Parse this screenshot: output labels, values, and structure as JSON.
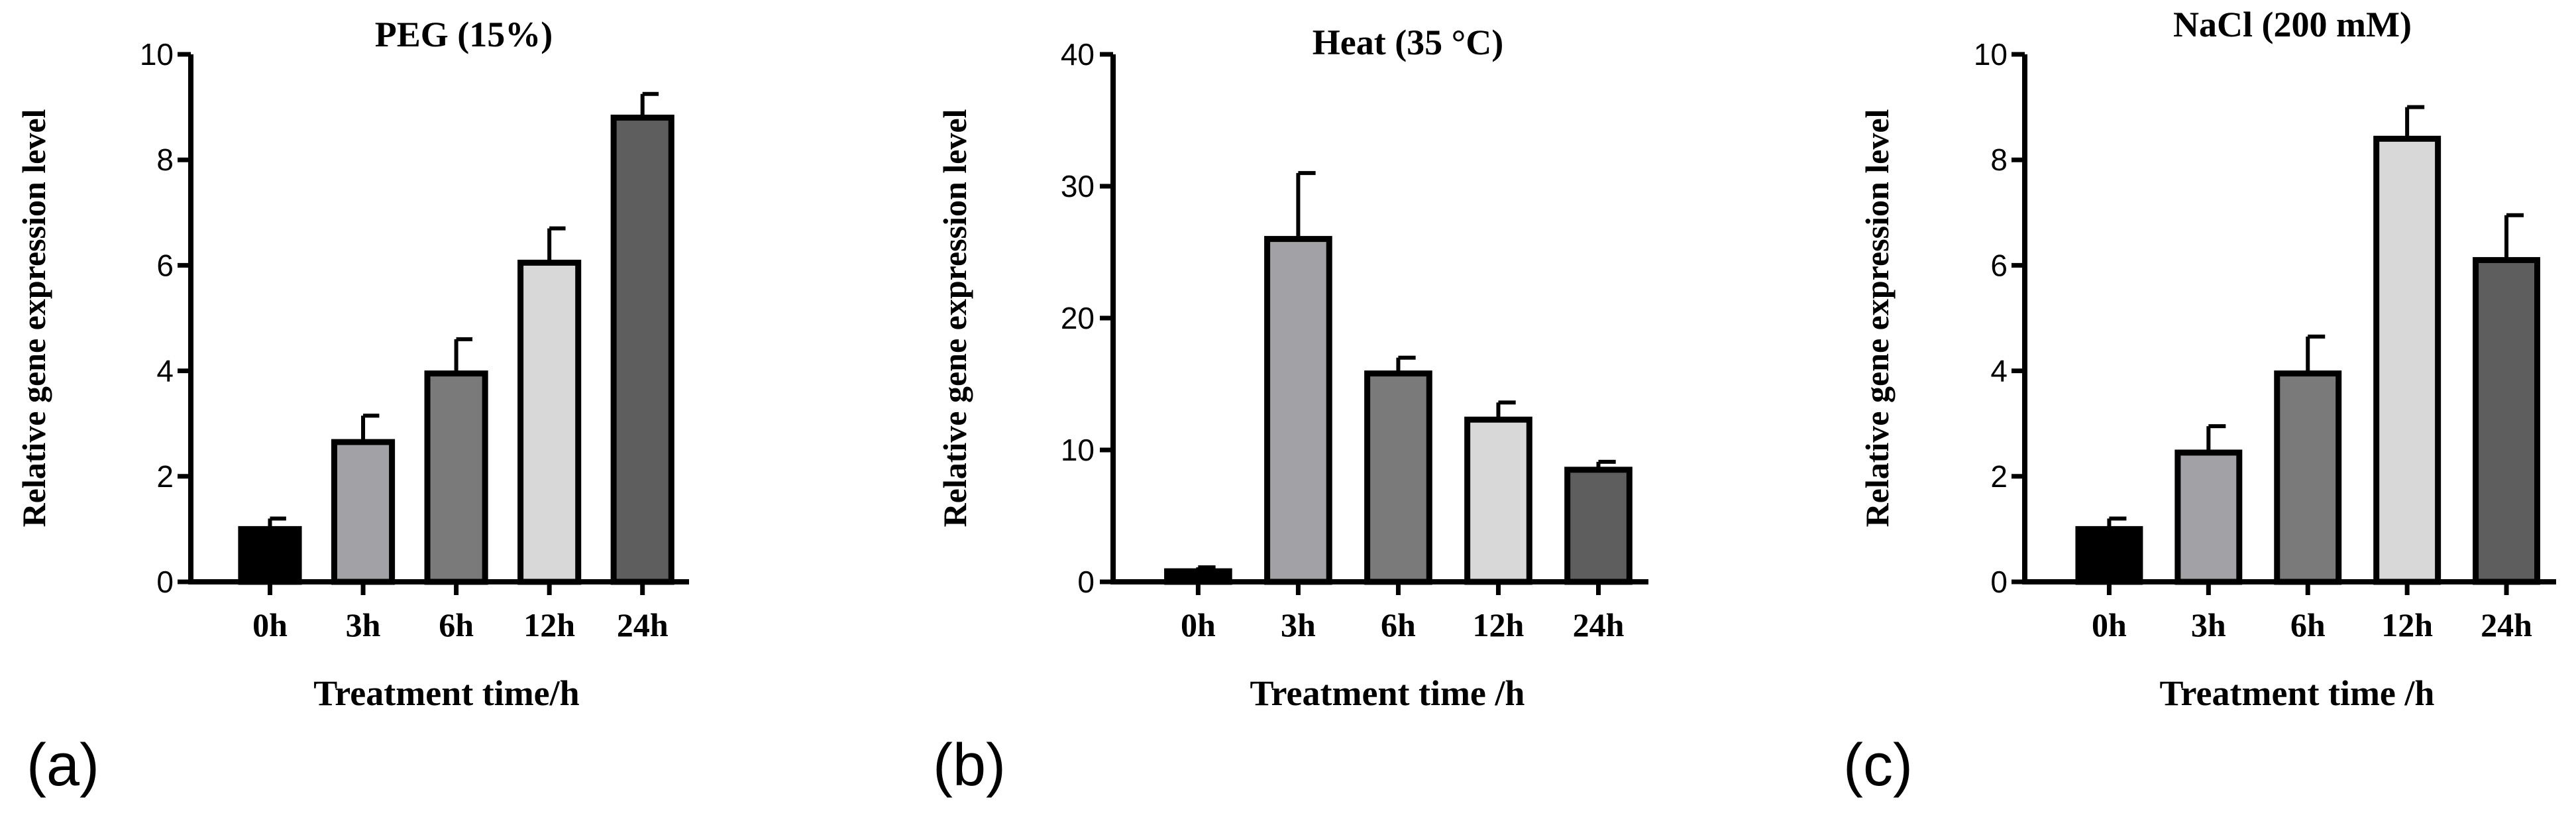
{
  "figure_colors": {
    "axis": "#000000",
    "bar_stroke": "#000000",
    "bar_fills": [
      "#000000",
      "#a2a1a6",
      "#7a7a7a",
      "#d8d8d8",
      "#5e5e5e"
    ]
  },
  "chart_data": [
    {
      "type": "bar",
      "panel_label": "(a)",
      "title": "PEG (15%)",
      "xlabel": "Treatment time/h",
      "ylabel": "Relative gene expression level",
      "categories": [
        "0h",
        "3h",
        "6h",
        "12h",
        "24h"
      ],
      "values": [
        1.0,
        2.65,
        3.95,
        6.05,
        8.8
      ],
      "errors": [
        0.2,
        0.5,
        0.65,
        0.65,
        0.45
      ],
      "ylim": [
        0,
        10
      ],
      "yticks": [
        0,
        2,
        4,
        6,
        8,
        10
      ],
      "grid": false
    },
    {
      "type": "bar",
      "panel_label": "(b)",
      "title": "Heat (35 °C)",
      "xlabel": "Treatment time /h",
      "ylabel": "Relative gene expression level",
      "categories": [
        "0h",
        "3h",
        "6h",
        "12h",
        "24h"
      ],
      "values": [
        0.8,
        26.0,
        15.8,
        12.3,
        8.5
      ],
      "errors": [
        0.3,
        5.0,
        1.2,
        1.3,
        0.6
      ],
      "ylim": [
        0,
        40
      ],
      "yticks": [
        0,
        10,
        20,
        30,
        40
      ],
      "grid": false
    },
    {
      "type": "bar",
      "panel_label": "(c)",
      "title": "NaCl (200 mM)",
      "xlabel": "Treatment time /h",
      "ylabel": "Relative gene expression level",
      "categories": [
        "0h",
        "3h",
        "6h",
        "12h",
        "24h"
      ],
      "values": [
        1.0,
        2.45,
        3.95,
        8.4,
        6.1
      ],
      "errors": [
        0.2,
        0.5,
        0.7,
        0.6,
        0.85
      ],
      "ylim": [
        0,
        10
      ],
      "yticks": [
        0,
        2,
        4,
        6,
        8,
        10
      ],
      "grid": false
    }
  ]
}
